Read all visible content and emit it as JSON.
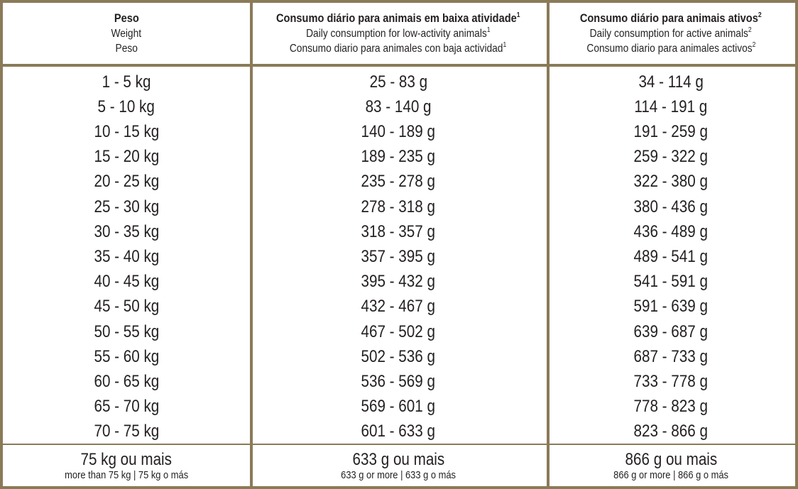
{
  "header": {
    "weight": {
      "title": "Peso",
      "line2": "Weight",
      "line3": "Peso"
    },
    "low": {
      "title": "Consumo diário para animais em baixa atividade",
      "title_sup": "1",
      "line2": "Daily consumption for low-activity animals",
      "line2_sup": "1",
      "line3": "Consumo diario para animales con baja actividad",
      "line3_sup": "1"
    },
    "active": {
      "title": "Consumo diário para animais ativos",
      "title_sup": "2",
      "line2": "Daily consumption for active animals",
      "line2_sup": "2",
      "line3": "Consumo diario para animales activos",
      "line3_sup": "2"
    }
  },
  "rows": [
    [
      "1 - 5 kg",
      "25 - 83 g",
      "34 - 114 g"
    ],
    [
      "5 - 10 kg",
      "83 - 140 g",
      "114 - 191 g"
    ],
    [
      "10 - 15 kg",
      "140 - 189 g",
      "191 - 259 g"
    ],
    [
      "15 - 20 kg",
      "189 - 235 g",
      "259 - 322 g"
    ],
    [
      "20 - 25 kg",
      "235 - 278 g",
      "322 - 380 g"
    ],
    [
      "25 - 30 kg",
      "278 - 318 g",
      "380 - 436 g"
    ],
    [
      "30 - 35 kg",
      "318 - 357 g",
      "436 - 489 g"
    ],
    [
      "35 - 40 kg",
      "357 - 395 g",
      "489 - 541 g"
    ],
    [
      "40 - 45 kg",
      "395 - 432 g",
      "541 - 591 g"
    ],
    [
      "45 - 50 kg",
      "432 - 467 g",
      "591 - 639 g"
    ],
    [
      "50 - 55 kg",
      "467 - 502 g",
      "639 - 687 g"
    ],
    [
      "55 - 60 kg",
      "502 - 536 g",
      "687 - 733 g"
    ],
    [
      "60 - 65 kg",
      "536 - 569 g",
      "733 - 778 g"
    ],
    [
      "65 - 70 kg",
      "569 - 601 g",
      "778 - 823 g"
    ],
    [
      "70 - 75 kg",
      "601 - 633 g",
      "823 - 866 g"
    ]
  ],
  "last_row": {
    "weight": {
      "main": "75 kg ou mais",
      "small": "more than 75 kg | 75 kg o más"
    },
    "low": {
      "main": "633 g ou mais",
      "small": "633 g or more | 633 g o más"
    },
    "active": {
      "main": "866 g ou mais",
      "small": "866 g or more | 866 g o más"
    }
  },
  "colors": {
    "border": "#8a7a58",
    "text": "#231f20",
    "background": "#ffffff"
  }
}
